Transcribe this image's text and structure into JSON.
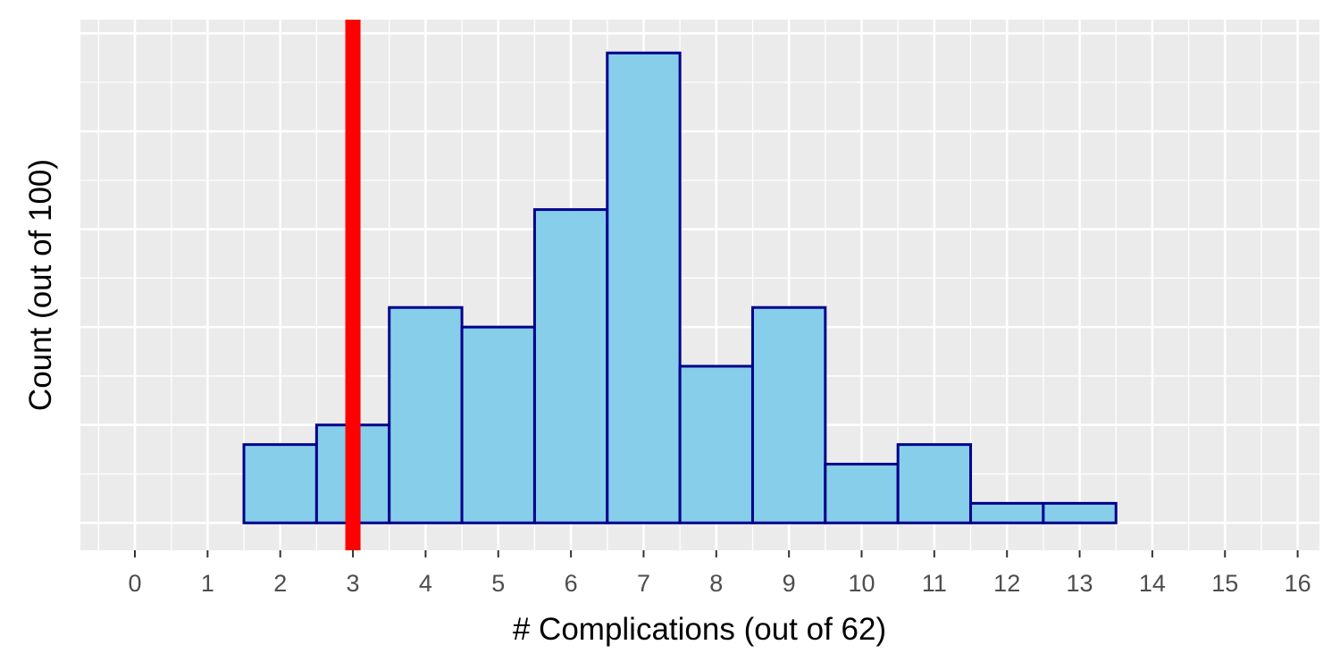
{
  "chart_data": {
    "type": "bar",
    "subtype": "histogram",
    "xlabel": "# Complications (out of 62)",
    "ylabel": "Count (out of 100)",
    "x_ticks": [
      0,
      1,
      2,
      3,
      4,
      5,
      6,
      7,
      8,
      9,
      10,
      11,
      12,
      13,
      14,
      15,
      16
    ],
    "xlim": [
      -0.75,
      16.3
    ],
    "ylim": [
      -1.4,
      25.7
    ],
    "y_ticks_shown": false,
    "bin_width": 1,
    "bins": [
      {
        "x": 1,
        "count": 0
      },
      {
        "x": 2,
        "count": 4
      },
      {
        "x": 3,
        "count": 5
      },
      {
        "x": 4,
        "count": 11
      },
      {
        "x": 5,
        "count": 10
      },
      {
        "x": 6,
        "count": 16
      },
      {
        "x": 7,
        "count": 24
      },
      {
        "x": 8,
        "count": 8
      },
      {
        "x": 9,
        "count": 11
      },
      {
        "x": 10,
        "count": 3
      },
      {
        "x": 11,
        "count": 4
      },
      {
        "x": 12,
        "count": 1
      },
      {
        "x": 13,
        "count": 1
      },
      {
        "x": 14,
        "count": 0
      },
      {
        "x": 15,
        "count": 0
      }
    ],
    "reference_line": {
      "x": 3,
      "color": "#ff0000"
    },
    "colors": {
      "bar_fill": "#87ceeb",
      "bar_outline": "#00008b",
      "panel_background": "#ebebeb",
      "grid": "#ffffff"
    },
    "grid": true,
    "legend": "none"
  }
}
